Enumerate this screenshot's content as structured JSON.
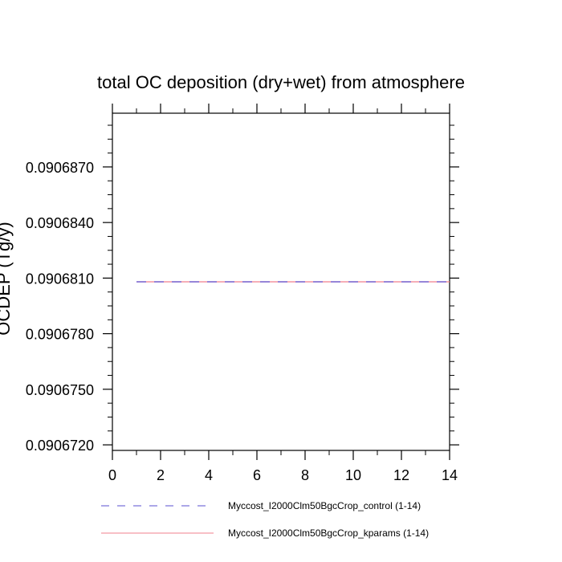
{
  "chart_data": {
    "type": "line",
    "title": "total OC deposition (dry+wet) from atmosphere",
    "ylabel": "OCDEP (Tg/y)",
    "xlabel": "",
    "xlim": [
      0,
      14
    ],
    "ylim": [
      0.0906717,
      0.0906899
    ],
    "x_ticks": [
      0,
      2,
      4,
      6,
      8,
      10,
      12,
      14
    ],
    "x_tick_labels": [
      "0",
      "2",
      "4",
      "6",
      "8",
      "10",
      "12",
      "14"
    ],
    "y_ticks": [
      0.090672,
      0.090675,
      0.090678,
      0.090681,
      0.090684,
      0.090687
    ],
    "y_tick_labels": [
      "0.0906720",
      "0.0906750",
      "0.0906780",
      "0.0906810",
      "0.0906840",
      "0.0906870"
    ],
    "grid": false,
    "legend_position": "bottom",
    "series": [
      {
        "name": "Myccost_I2000Clm50BgcCrop_control (1-14)",
        "color": "#5a4fd1",
        "style": "dashed",
        "x": [
          1,
          2,
          3,
          4,
          5,
          6,
          7,
          8,
          9,
          10,
          11,
          12,
          13,
          14
        ],
        "y": [
          0.0906808,
          0.0906808,
          0.0906808,
          0.0906808,
          0.0906808,
          0.0906808,
          0.0906808,
          0.0906808,
          0.0906808,
          0.0906808,
          0.0906808,
          0.0906808,
          0.0906808,
          0.0906808
        ]
      },
      {
        "name": "Myccost_I2000Clm50BgcCrop_kparams (1-14)",
        "color": "#f07f8c",
        "style": "solid",
        "x": [
          1,
          2,
          3,
          4,
          5,
          6,
          7,
          8,
          9,
          10,
          11,
          12,
          13,
          14
        ],
        "y": [
          0.0906808,
          0.0906808,
          0.0906808,
          0.0906808,
          0.0906808,
          0.0906808,
          0.0906808,
          0.0906808,
          0.0906808,
          0.0906808,
          0.0906808,
          0.0906808,
          0.0906808,
          0.0906808
        ]
      }
    ]
  }
}
